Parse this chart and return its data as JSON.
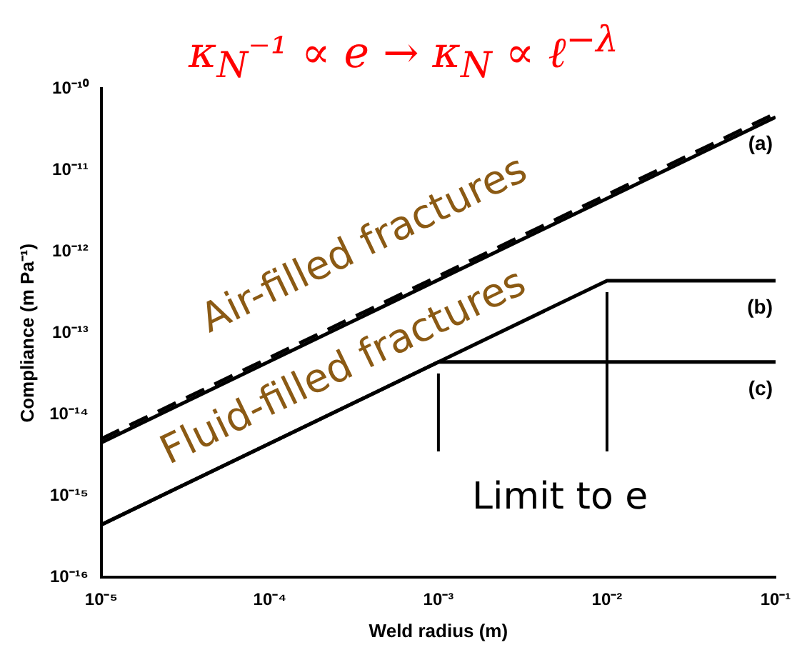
{
  "chart_data": {
    "type": "line",
    "title": "κ$_{N}$⁻¹ ∝ e → κ$_{N}$ ∝ ℓ$^{−λ}$",
    "xlabel": "Weld radius (m)",
    "ylabel": "Compliance (m Pa⁻¹)",
    "log": "xy",
    "grid": false,
    "legend": false,
    "marker": "none",
    "xlim": [
      1e-05,
      0.1
    ],
    "xticks": [
      {
        "value": 1e-05,
        "label": "10⁻⁵"
      },
      {
        "value": 0.0001,
        "label": "10⁻⁴"
      },
      {
        "value": 0.001,
        "label": "10⁻³"
      },
      {
        "value": 0.01,
        "label": "10⁻²"
      },
      {
        "value": 0.1,
        "label": "10⁻¹"
      }
    ],
    "ylim": [
      1e-16,
      1e-10
    ],
    "yticks": [
      {
        "value": 1e-16,
        "label": "10⁻¹⁶"
      },
      {
        "value": 1e-15,
        "label": "10⁻¹⁵"
      },
      {
        "value": 1e-14,
        "label": "10⁻¹⁴"
      },
      {
        "value": 1e-13,
        "label": "10⁻¹³"
      },
      {
        "value": 1e-12,
        "label": "10⁻¹²"
      },
      {
        "value": 1e-11,
        "label": "10⁻¹¹"
      },
      {
        "value": 1e-10,
        "label": "10⁻¹⁰"
      }
    ],
    "series": [
      {
        "color": "#000000",
        "line_style": "dashed",
        "x": [
          1e-05,
          0.1
        ],
        "values": [
          5e-15,
          5e-11
        ]
      },
      {
        "name": "(a)",
        "color": "#000000",
        "line_style": "solid",
        "x": [
          1e-05,
          0.1
        ],
        "values": [
          4.5e-15,
          4.5e-11
        ]
      },
      {
        "name": "(b)",
        "color": "#000000",
        "line_style": "solid",
        "x": [
          1e-05,
          0.01,
          0.1
        ],
        "values": [
          4.4e-16,
          4.4e-13,
          4.4e-13
        ]
      },
      {
        "name": "(c)",
        "color": "#000000",
        "line_style": "solid",
        "x": [
          1e-05,
          0.001,
          0.1
        ],
        "values": [
          4.4e-16,
          4.4e-14,
          4.4e-14
        ]
      }
    ],
    "annotations": [
      "Air-filled fractures",
      "Fluid-filled fractures",
      "Limit to e"
    ]
  }
}
